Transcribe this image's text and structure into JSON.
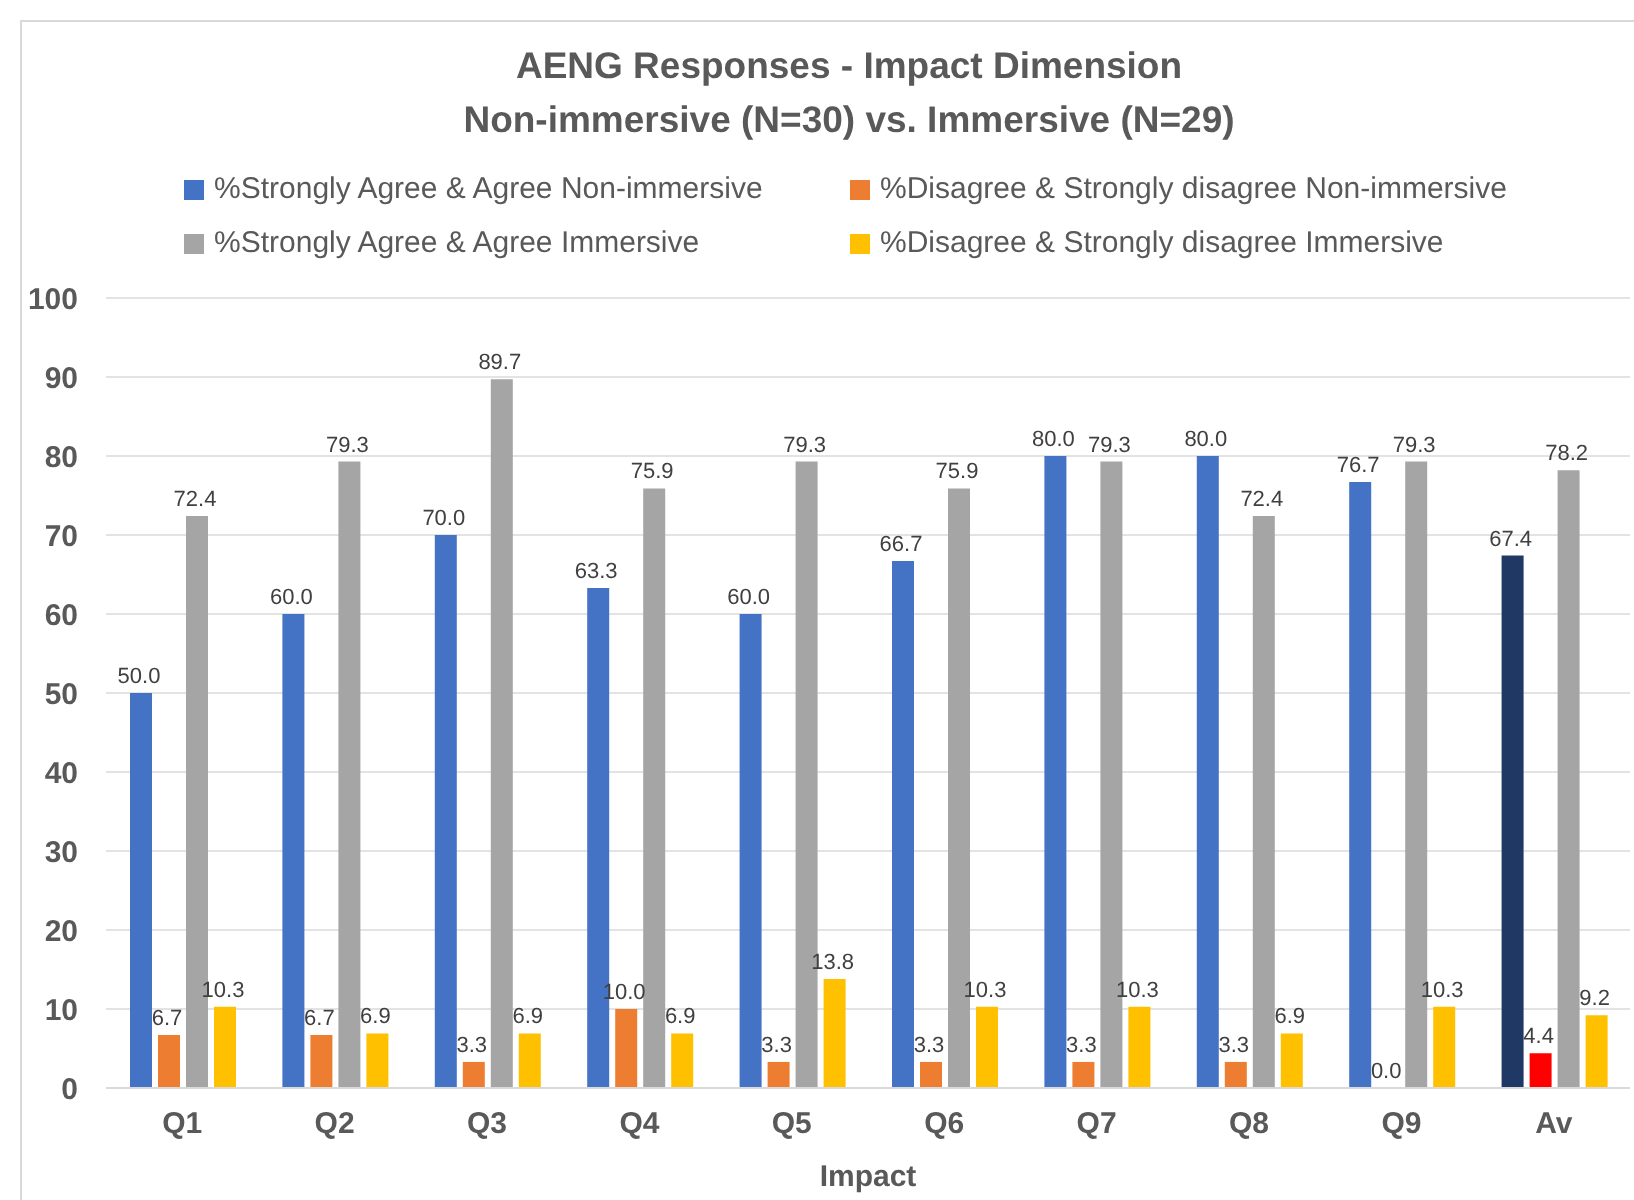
{
  "chart_data": {
    "type": "bar",
    "title": "AENG Responses - Impact Dimension",
    "subtitle": "Non-immersive (N=30) vs. Immersive (N=29)",
    "xlabel": "Impact",
    "categories": [
      "Q1",
      "Q2",
      "Q3",
      "Q4",
      "Q5",
      "Q6",
      "Q7",
      "Q8",
      "Q9",
      "Av"
    ],
    "series": [
      {
        "name": "%Strongly Agree & Agree Non-immersive",
        "color": "#4472c4",
        "colors": [
          "#4472c4",
          "#4472c4",
          "#4472c4",
          "#4472c4",
          "#4472c4",
          "#4472c4",
          "#4472c4",
          "#4472c4",
          "#4472c4",
          "#203864"
        ],
        "values": [
          50.0,
          60.0,
          70.0,
          63.3,
          60.0,
          66.7,
          80.0,
          80.0,
          76.7,
          67.4
        ],
        "value_labels": [
          "50.0",
          "60.0",
          "70.0",
          "63.3",
          "60.0",
          "66.7",
          "80.0",
          "80.0",
          "76.7",
          "67.4"
        ]
      },
      {
        "name": "%Disagree & Strongly disagree Non-immersive",
        "color": "#ed7d31",
        "colors": [
          "#ed7d31",
          "#ed7d31",
          "#ed7d31",
          "#ed7d31",
          "#ed7d31",
          "#ed7d31",
          "#ed7d31",
          "#ed7d31",
          "#ed7d31",
          "#ff0000"
        ],
        "values": [
          6.7,
          6.7,
          3.3,
          10.0,
          3.3,
          3.3,
          3.3,
          3.3,
          0.0,
          4.4
        ],
        "value_labels": [
          "6.7",
          "6.7",
          "3.3",
          "10.0",
          "3.3",
          "3.3",
          "3.3",
          "3.3",
          "0.0",
          "4.4"
        ]
      },
      {
        "name": "%Strongly Agree & Agree Immersive",
        "color": "#a5a5a5",
        "values": [
          72.4,
          79.3,
          89.7,
          75.9,
          79.3,
          75.9,
          79.3,
          72.4,
          79.3,
          78.2
        ],
        "value_labels": [
          "72.4",
          "79.3",
          "89.7",
          "75.9",
          "79.3",
          "75.9",
          "79.3",
          "72.4",
          "79.3",
          "78.2"
        ]
      },
      {
        "name": "%Disagree & Strongly disagree Immersive",
        "color": "#ffc000",
        "values": [
          10.3,
          6.9,
          6.9,
          6.9,
          13.8,
          10.3,
          10.3,
          6.9,
          10.3,
          9.2
        ],
        "value_labels": [
          "10.3",
          "6.9",
          "6.9",
          "6.9",
          "13.8",
          "10.3",
          "10.3",
          "6.9",
          "10.3",
          "9.2"
        ]
      }
    ],
    "ylim": [
      0,
      100
    ],
    "yticks": [
      0,
      10,
      20,
      30,
      40,
      50,
      60,
      70,
      80,
      90,
      100
    ],
    "grid": "y",
    "legend": "top"
  }
}
